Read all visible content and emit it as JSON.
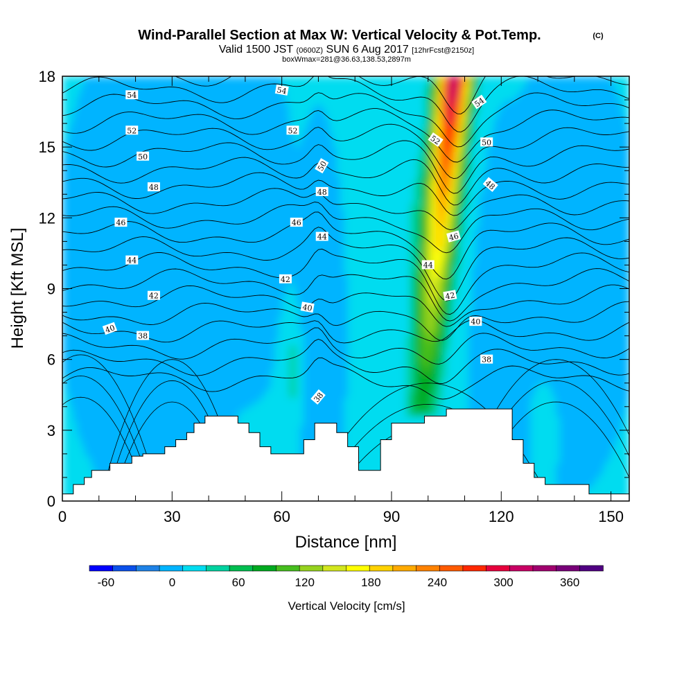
{
  "title": {
    "main": "Wind-Parallel Section at Max W: Vertical Velocity & Pot.Temp.",
    "copyright": "(C)",
    "line2_a": "Valid 1500 JST",
    "line2_b": "(0600Z)",
    "line2_c": "SUN 6 Aug 2017",
    "line2_d": "[12hrFcst@2150z]",
    "line3": "boxWmax=281@36.63,138.53,2897m"
  },
  "chart_data": {
    "type": "heatmap",
    "xlabel": "Distance [nm]",
    "ylabel": "Height [Kft MSL]",
    "xlim": [
      0,
      155
    ],
    "ylim": [
      0,
      18
    ],
    "xticks": [
      0,
      30,
      60,
      90,
      120,
      150
    ],
    "yticks": [
      0,
      3,
      6,
      9,
      12,
      15,
      18
    ],
    "colorbar": {
      "label": "Vertical Velocity [cm/s]",
      "ticks": [
        -60,
        0,
        60,
        120,
        180,
        240,
        300,
        360
      ],
      "range": [
        -75,
        390
      ],
      "colors": [
        "#0000ff",
        "#0a50ea",
        "#1e82e6",
        "#00b4ff",
        "#00dcf0",
        "#00d2a0",
        "#00be50",
        "#00aa20",
        "#46be1e",
        "#96d21e",
        "#d2e61e",
        "#ffff00",
        "#ffd200",
        "#ffaa00",
        "#ff8200",
        "#ff5a00",
        "#ff2800",
        "#e6003c",
        "#c80064",
        "#a0006e",
        "#780078",
        "#500082"
      ]
    },
    "terrain_kft": [
      [
        0,
        0.3
      ],
      [
        3,
        0.7
      ],
      [
        6,
        1.0
      ],
      [
        8,
        1.3
      ],
      [
        10,
        1.3
      ],
      [
        13,
        1.6
      ],
      [
        16,
        1.6
      ],
      [
        19,
        1.9
      ],
      [
        22,
        2.0
      ],
      [
        25,
        2.0
      ],
      [
        28,
        2.3
      ],
      [
        31,
        2.6
      ],
      [
        34,
        2.9
      ],
      [
        36,
        3.3
      ],
      [
        39,
        3.6
      ],
      [
        42,
        3.6
      ],
      [
        45,
        3.6
      ],
      [
        48,
        3.3
      ],
      [
        51,
        2.9
      ],
      [
        54,
        2.3
      ],
      [
        57,
        2.0
      ],
      [
        60,
        2.0
      ],
      [
        63,
        2.0
      ],
      [
        66,
        2.6
      ],
      [
        69,
        3.3
      ],
      [
        72,
        3.3
      ],
      [
        75,
        2.9
      ],
      [
        78,
        2.3
      ],
      [
        81,
        1.3
      ],
      [
        84,
        1.3
      ],
      [
        87,
        2.6
      ],
      [
        90,
        3.3
      ],
      [
        93,
        3.3
      ],
      [
        96,
        3.3
      ],
      [
        99,
        3.6
      ],
      [
        102,
        3.6
      ],
      [
        105,
        3.9
      ],
      [
        108,
        3.9
      ],
      [
        111,
        3.9
      ],
      [
        114,
        3.9
      ],
      [
        117,
        3.9
      ],
      [
        120,
        3.9
      ],
      [
        123,
        2.6
      ],
      [
        126,
        1.6
      ],
      [
        129,
        1.0
      ],
      [
        132,
        0.7
      ],
      [
        135,
        0.7
      ],
      [
        138,
        0.7
      ],
      [
        141,
        0.7
      ],
      [
        144,
        0.3
      ],
      [
        147,
        0.3
      ],
      [
        150,
        0.3
      ],
      [
        155,
        0.3
      ]
    ],
    "theta_levels": [
      36,
      37,
      38,
      39,
      40,
      41,
      42,
      43,
      44,
      45,
      46,
      47,
      48,
      49,
      50,
      51,
      52,
      53,
      54,
      55
    ],
    "contour_labels": [
      {
        "text": "54",
        "x": 19,
        "y": 17.2,
        "rot": 0
      },
      {
        "text": "54",
        "x": 60,
        "y": 17.4,
        "rot": 10
      },
      {
        "text": "54",
        "x": 114,
        "y": 16.9,
        "rot": -35
      },
      {
        "text": "52",
        "x": 19,
        "y": 15.7,
        "rot": 0
      },
      {
        "text": "52",
        "x": 63,
        "y": 15.7,
        "rot": 0
      },
      {
        "text": "52",
        "x": 102,
        "y": 15.3,
        "rot": 35
      },
      {
        "text": "50",
        "x": 22,
        "y": 14.6,
        "rot": 0
      },
      {
        "text": "50",
        "x": 116,
        "y": 15.2,
        "rot": 0
      },
      {
        "text": "50",
        "x": 71,
        "y": 14.2,
        "rot": -60
      },
      {
        "text": "48",
        "x": 25,
        "y": 13.3,
        "rot": 0
      },
      {
        "text": "48",
        "x": 71,
        "y": 13.1,
        "rot": 0
      },
      {
        "text": "48",
        "x": 117,
        "y": 13.4,
        "rot": 40
      },
      {
        "text": "46",
        "x": 16,
        "y": 11.8,
        "rot": 0
      },
      {
        "text": "46",
        "x": 64,
        "y": 11.8,
        "rot": 0
      },
      {
        "text": "46",
        "x": 107,
        "y": 11.2,
        "rot": -15
      },
      {
        "text": "44",
        "x": 19,
        "y": 10.2,
        "rot": 0
      },
      {
        "text": "44",
        "x": 71,
        "y": 11.2,
        "rot": 0
      },
      {
        "text": "44",
        "x": 100,
        "y": 10.0,
        "rot": 0
      },
      {
        "text": "42",
        "x": 25,
        "y": 8.7,
        "rot": 0
      },
      {
        "text": "42",
        "x": 61,
        "y": 9.4,
        "rot": 0
      },
      {
        "text": "42",
        "x": 106,
        "y": 8.7,
        "rot": -10
      },
      {
        "text": "40",
        "x": 13,
        "y": 7.3,
        "rot": -20
      },
      {
        "text": "40",
        "x": 67,
        "y": 8.2,
        "rot": 10
      },
      {
        "text": "40",
        "x": 113,
        "y": 7.6,
        "rot": 0
      },
      {
        "text": "38",
        "x": 22,
        "y": 7.0,
        "rot": 0
      },
      {
        "text": "38",
        "x": 116,
        "y": 6.0,
        "rot": 0
      },
      {
        "text": "38",
        "x": 70,
        "y": 4.4,
        "rot": -50
      }
    ]
  }
}
